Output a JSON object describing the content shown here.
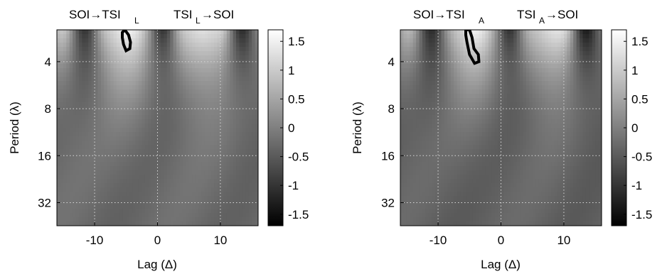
{
  "chart_data": [
    {
      "type": "heatmap",
      "id": "left",
      "annotations": [
        "SOI→TSI",
        "L",
        "TSI",
        "L",
        "→SOI"
      ],
      "xlabel": "Lag (Δ)",
      "ylabel": "Period (λ)",
      "x_ticks": [
        -10,
        0,
        10
      ],
      "x_tick_labels": [
        "-10",
        "0",
        "10"
      ],
      "xlim": [
        -16,
        16
      ],
      "y_scale": "log2",
      "y_ticks": [
        4,
        8,
        16,
        32
      ],
      "y_tick_labels": [
        "4",
        "8",
        "16",
        "32"
      ],
      "ylim": [
        2.5,
        45
      ],
      "grid": true,
      "colormap": "gray",
      "colorbar": {
        "ticks": [
          1.5,
          1,
          0.5,
          0,
          -0.5,
          -1,
          -1.5
        ],
        "tick_labels": [
          "1.5",
          "1",
          "0.5",
          "0",
          "-0.5",
          "-1",
          "-1.5"
        ],
        "range": [
          -1.7,
          1.7
        ]
      },
      "field": {
        "background_level": -0.3,
        "bands": [
          {
            "lag": -15.0,
            "amp": 1.3
          },
          {
            "lag": -11.5,
            "amp": -1.0
          },
          {
            "lag": -8.5,
            "amp": 1.1
          },
          {
            "lag": -5.0,
            "amp": 1.5
          },
          {
            "lag": -2.0,
            "amp": 1.0
          },
          {
            "lag": 1.0,
            "amp": -1.2
          },
          {
            "lag": 3.5,
            "amp": 1.2
          },
          {
            "lag": 7.0,
            "amp": 1.3
          },
          {
            "lag": 10.5,
            "amp": 1.3
          },
          {
            "lag": 13.5,
            "amp": -1.4
          },
          {
            "lag": 15.5,
            "amp": 0.8
          }
        ]
      },
      "significance_contour": [
        [
          -5.6,
          2.6
        ],
        [
          -5.2,
          2.5
        ],
        [
          -4.6,
          2.7
        ],
        [
          -4.3,
          3.0
        ],
        [
          -4.4,
          3.3
        ],
        [
          -5.0,
          3.4
        ],
        [
          -5.4,
          3.1
        ],
        [
          -5.6,
          2.8
        ]
      ]
    },
    {
      "type": "heatmap",
      "id": "right",
      "annotations": [
        "SOI→TSI",
        "A",
        "TSI",
        "A",
        "→SOI"
      ],
      "xlabel": "Lag (Δ)",
      "ylabel": "Period (λ)",
      "x_ticks": [
        -10,
        0,
        10
      ],
      "x_tick_labels": [
        "-10",
        "0",
        "10"
      ],
      "xlim": [
        -16,
        16
      ],
      "y_scale": "log2",
      "y_ticks": [
        4,
        8,
        16,
        32
      ],
      "y_tick_labels": [
        "4",
        "8",
        "16",
        "32"
      ],
      "ylim": [
        2.5,
        45
      ],
      "grid": true,
      "colormap": "gray",
      "colorbar": {
        "ticks": [
          1.5,
          1,
          0.5,
          0,
          -0.5,
          -1,
          -1.5
        ],
        "tick_labels": [
          "1.5",
          "1",
          "0.5",
          "0",
          "-0.5",
          "-1",
          "-1.5"
        ],
        "range": [
          -1.7,
          1.7
        ]
      },
      "field": {
        "background_level": -0.4,
        "bands": [
          {
            "lag": -14.5,
            "amp": 1.2
          },
          {
            "lag": -11.0,
            "amp": -1.0
          },
          {
            "lag": -8.0,
            "amp": 1.0
          },
          {
            "lag": -4.5,
            "amp": 1.6
          },
          {
            "lag": -1.5,
            "amp": 1.0
          },
          {
            "lag": 1.5,
            "amp": -1.1
          },
          {
            "lag": 4.0,
            "amp": 1.1
          },
          {
            "lag": 7.5,
            "amp": 1.2
          },
          {
            "lag": 10.5,
            "amp": 1.4
          },
          {
            "lag": 13.5,
            "amp": -1.5
          },
          {
            "lag": 15.5,
            "amp": 0.7
          }
        ]
      },
      "significance_contour": [
        [
          -5.6,
          2.5
        ],
        [
          -5.0,
          2.5
        ],
        [
          -4.6,
          2.8
        ],
        [
          -4.3,
          3.3
        ],
        [
          -3.6,
          3.6
        ],
        [
          -3.5,
          4.0
        ],
        [
          -4.2,
          4.1
        ],
        [
          -5.0,
          3.6
        ],
        [
          -5.4,
          3.0
        ],
        [
          -5.6,
          2.7
        ]
      ]
    }
  ]
}
